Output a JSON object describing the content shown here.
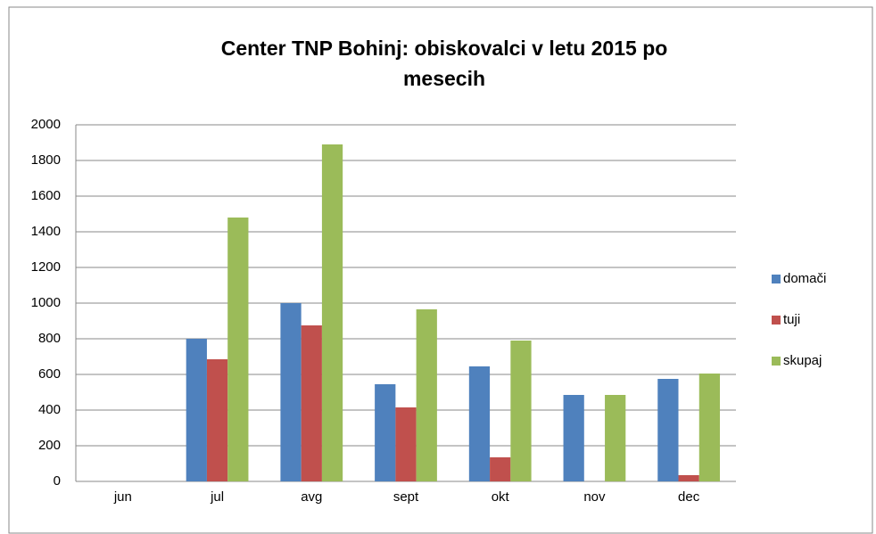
{
  "chart_data": {
    "type": "bar",
    "title_lines": [
      "Center TNP Bohinj: obiskovalci v letu 2015 po",
      "mesecih"
    ],
    "categories": [
      "jun",
      "jul",
      "avg",
      "sept",
      "okt",
      "nov",
      "dec"
    ],
    "series": [
      {
        "name": "domači",
        "color": "#4f81bd",
        "values": [
          0,
          800,
          1000,
          545,
          645,
          485,
          575
        ]
      },
      {
        "name": "tuji",
        "color": "#c0504d",
        "values": [
          0,
          685,
          875,
          415,
          135,
          0,
          35
        ]
      },
      {
        "name": "skupaj",
        "color": "#9bbb59",
        "values": [
          0,
          1480,
          1890,
          965,
          790,
          485,
          605
        ]
      }
    ],
    "ylim": [
      0,
      2000
    ],
    "yticks": [
      0,
      200,
      400,
      600,
      800,
      1000,
      1200,
      1400,
      1600,
      1800,
      2000
    ],
    "grid": true,
    "legend": "right"
  }
}
